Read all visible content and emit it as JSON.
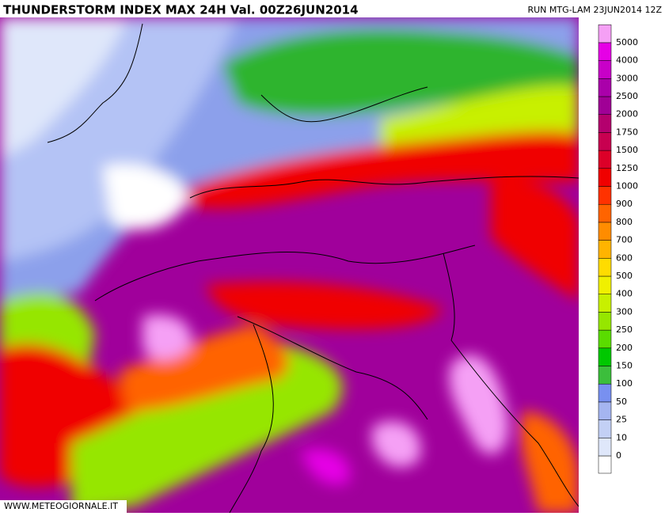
{
  "header": {
    "title": "THUNDERSTORM INDEX MAX 24H Val. 00Z26JUN2014",
    "run": "RUN MTG-LAM 23JUN2014 12Z"
  },
  "colorbar": {
    "levels": [
      {
        "value": 0,
        "color": "#dfe7fa"
      },
      {
        "value": 10,
        "color": "#c3d0f5"
      },
      {
        "value": 25,
        "color": "#a5b5f0"
      },
      {
        "value": 50,
        "color": "#7890f0"
      },
      {
        "value": 100,
        "color": "#3cbe3c"
      },
      {
        "value": 150,
        "color": "#00c800"
      },
      {
        "value": 200,
        "color": "#5adc00"
      },
      {
        "value": 250,
        "color": "#96e600"
      },
      {
        "value": 300,
        "color": "#c8f000"
      },
      {
        "value": 400,
        "color": "#f0f000"
      },
      {
        "value": 500,
        "color": "#ffdc00"
      },
      {
        "value": 600,
        "color": "#ffb400"
      },
      {
        "value": 700,
        "color": "#ff8c00"
      },
      {
        "value": 800,
        "color": "#ff6400"
      },
      {
        "value": 900,
        "color": "#ff3200"
      },
      {
        "value": 1000,
        "color": "#f00000"
      },
      {
        "value": 1250,
        "color": "#dc0028"
      },
      {
        "value": 1500,
        "color": "#c80050"
      },
      {
        "value": 1750,
        "color": "#b4006e"
      },
      {
        "value": 2000,
        "color": "#a00096"
      },
      {
        "value": 2500,
        "color": "#aa00aa"
      },
      {
        "value": 3000,
        "color": "#c800c8"
      },
      {
        "value": 4000,
        "color": "#e600e6"
      },
      {
        "value": 5000,
        "color": "#f5a0f5"
      }
    ]
  },
  "footer": {
    "watermark": "WWW.METEOGIORNALE.IT"
  }
}
